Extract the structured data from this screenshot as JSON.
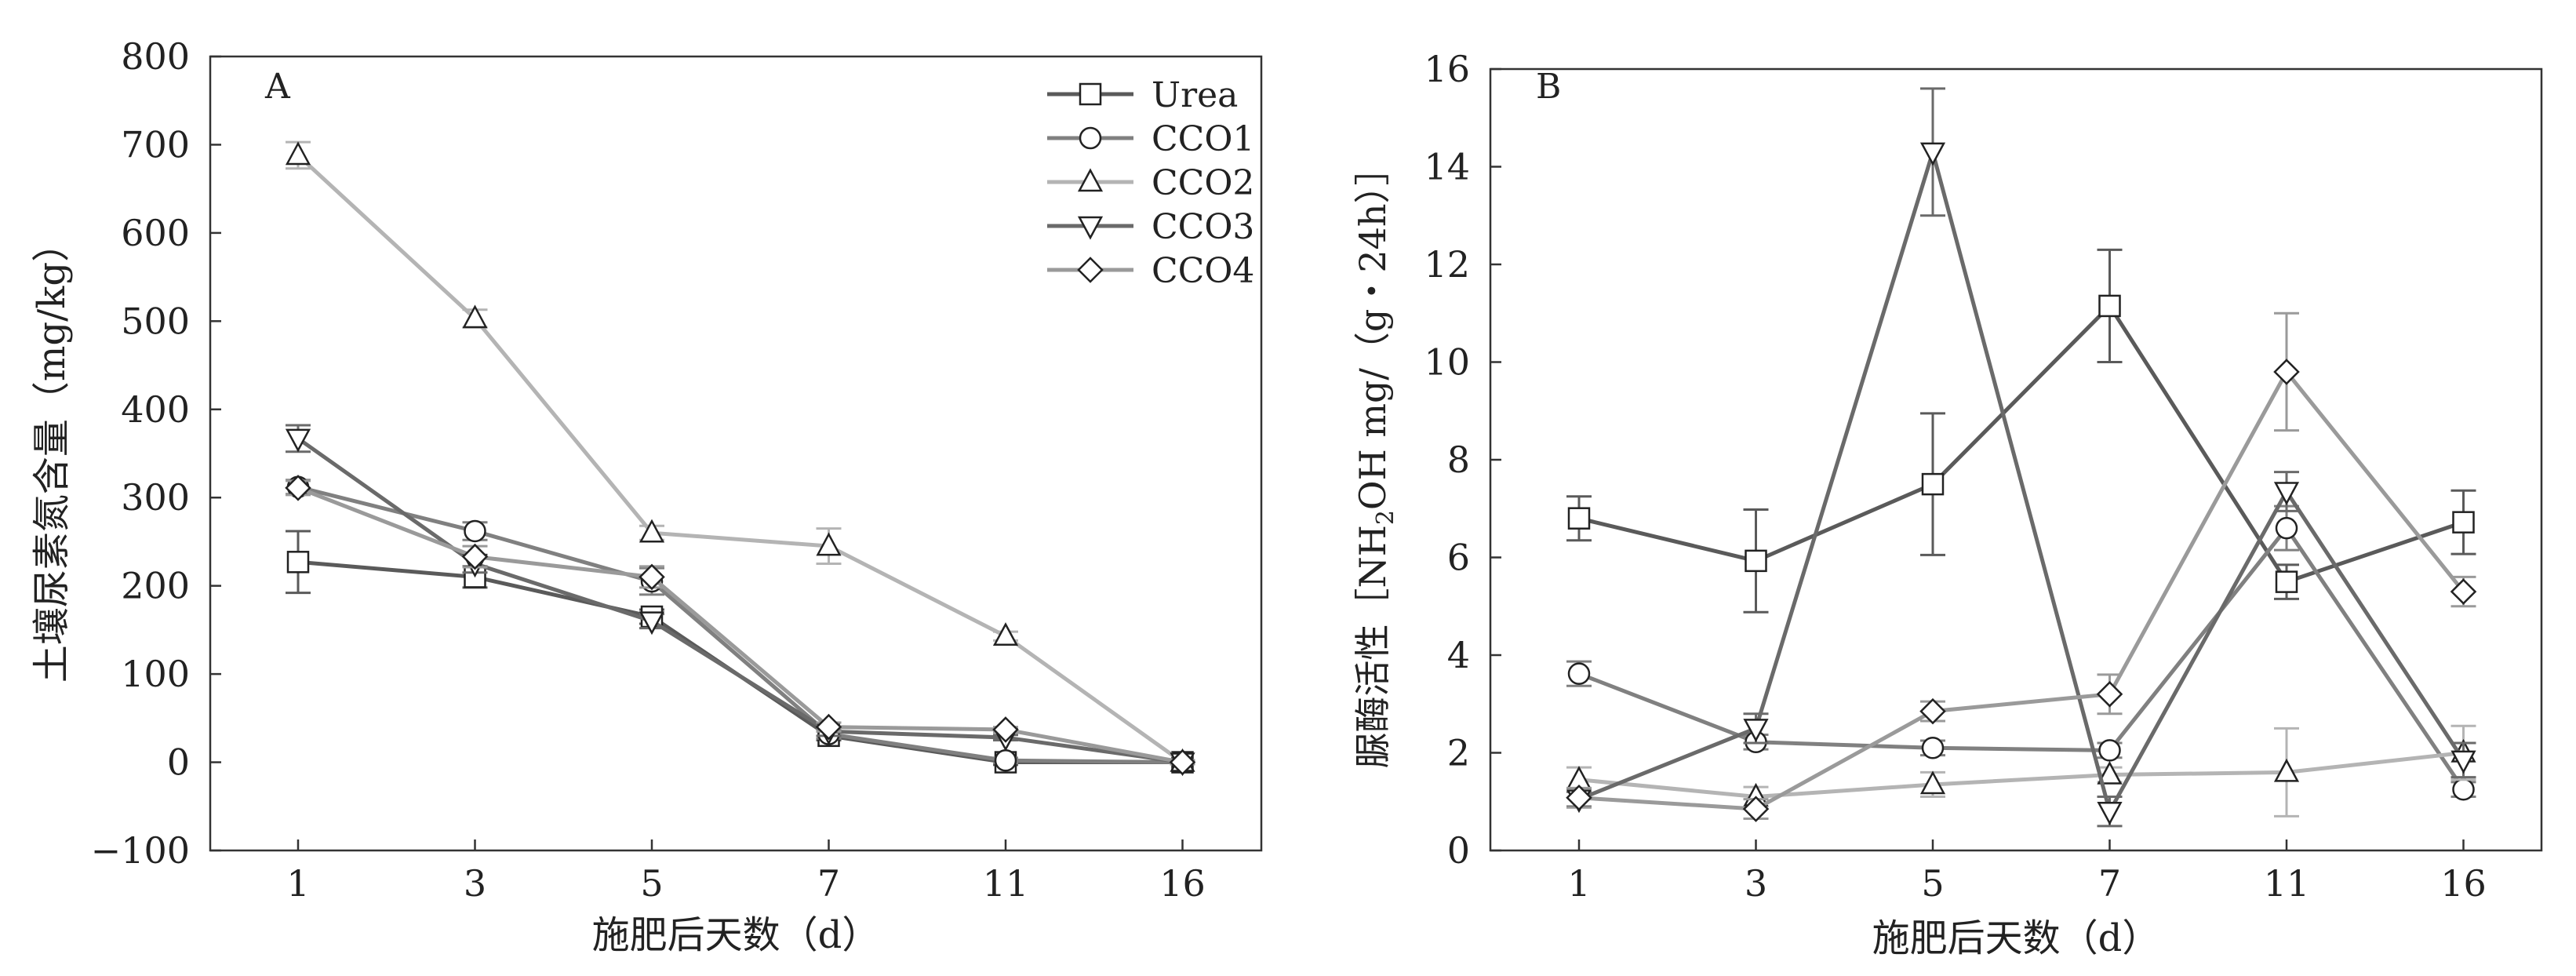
{
  "chart_data": [
    {
      "panel_label": "A",
      "type": "line",
      "xlabel": "施肥后天数（d）",
      "ylabel": "土壤尿素氮含量（mg/kg）",
      "categories": [
        "1",
        "3",
        "5",
        "7",
        "11",
        "16"
      ],
      "ylim": [
        -100,
        800
      ],
      "yticks": [
        "−100",
        "0",
        "100",
        "200",
        "300",
        "400",
        "500",
        "600",
        "700",
        "800"
      ],
      "ytick_values": [
        -100,
        0,
        100,
        200,
        300,
        400,
        500,
        600,
        700,
        800
      ],
      "legend_position": "top-right",
      "series": [
        {
          "name": "Urea",
          "marker": "square",
          "color": "#5a5a5a",
          "values": [
            227,
            210,
            165,
            30,
            0,
            0
          ],
          "errors": [
            35,
            12,
            8,
            5,
            3,
            2
          ]
        },
        {
          "name": "CCO1",
          "marker": "circle",
          "color": "#808080",
          "values": [
            312,
            262,
            205,
            32,
            2,
            0
          ],
          "errors": [
            8,
            10,
            15,
            5,
            3,
            2
          ]
        },
        {
          "name": "CCO2",
          "marker": "triangle-up",
          "color": "#b4b4b4",
          "values": [
            688,
            503,
            260,
            245,
            143,
            0
          ],
          "errors": [
            15,
            10,
            8,
            20,
            5,
            2
          ]
        },
        {
          "name": "CCO3",
          "marker": "triangle-down",
          "color": "#6a6a6a",
          "values": [
            367,
            225,
            160,
            35,
            28,
            0
          ],
          "errors": [
            15,
            10,
            8,
            5,
            3,
            2
          ]
        },
        {
          "name": "CCO4",
          "marker": "diamond",
          "color": "#9a9a9a",
          "values": [
            311,
            233,
            210,
            40,
            37,
            0
          ],
          "errors": [
            8,
            12,
            12,
            5,
            3,
            2
          ]
        }
      ]
    },
    {
      "panel_label": "B",
      "type": "line",
      "xlabel": "施肥后天数（d）",
      "ylabel_main": "脲酶活性［NH",
      "ylabel_sub": "2",
      "ylabel_rest": "OH mg/（g・24h）］",
      "categories": [
        "1",
        "3",
        "5",
        "7",
        "11",
        "16"
      ],
      "ylim": [
        0,
        16
      ],
      "yticks": [
        "0",
        "2",
        "4",
        "6",
        "8",
        "10",
        "12",
        "14",
        "16"
      ],
      "ytick_values": [
        0,
        2,
        4,
        6,
        8,
        10,
        12,
        14,
        16
      ],
      "series": [
        {
          "name": "Urea",
          "marker": "square",
          "color": "#5a5a5a",
          "values": [
            6.8,
            5.93,
            7.5,
            11.15,
            5.5,
            6.72
          ],
          "errors": [
            0.45,
            1.05,
            1.45,
            1.15,
            0.35,
            0.65
          ]
        },
        {
          "name": "CCO1",
          "marker": "circle",
          "color": "#808080",
          "values": [
            3.62,
            2.22,
            2.1,
            2.05,
            6.6,
            1.25
          ],
          "errors": [
            0.25,
            0.15,
            0.15,
            0.15,
            0.45,
            0.15
          ]
        },
        {
          "name": "CCO2",
          "marker": "triangle-up",
          "color": "#b4b4b4",
          "values": [
            1.45,
            1.1,
            1.35,
            1.55,
            1.6,
            2.0
          ],
          "errors": [
            0.25,
            0.2,
            0.25,
            0.15,
            0.9,
            0.55
          ]
        },
        {
          "name": "CCO3",
          "marker": "triangle-down",
          "color": "#6a6a6a",
          "values": [
            1.05,
            2.5,
            14.3,
            0.8,
            7.35,
            1.85
          ],
          "errors": [
            0.15,
            0.3,
            1.3,
            0.3,
            0.4,
            0.35
          ]
        },
        {
          "name": "CCO4",
          "marker": "diamond",
          "color": "#9a9a9a",
          "values": [
            1.08,
            0.85,
            2.85,
            3.2,
            9.8,
            5.3
          ],
          "errors": [
            0.2,
            0.2,
            0.2,
            0.4,
            1.2,
            0.3
          ]
        }
      ]
    }
  ]
}
